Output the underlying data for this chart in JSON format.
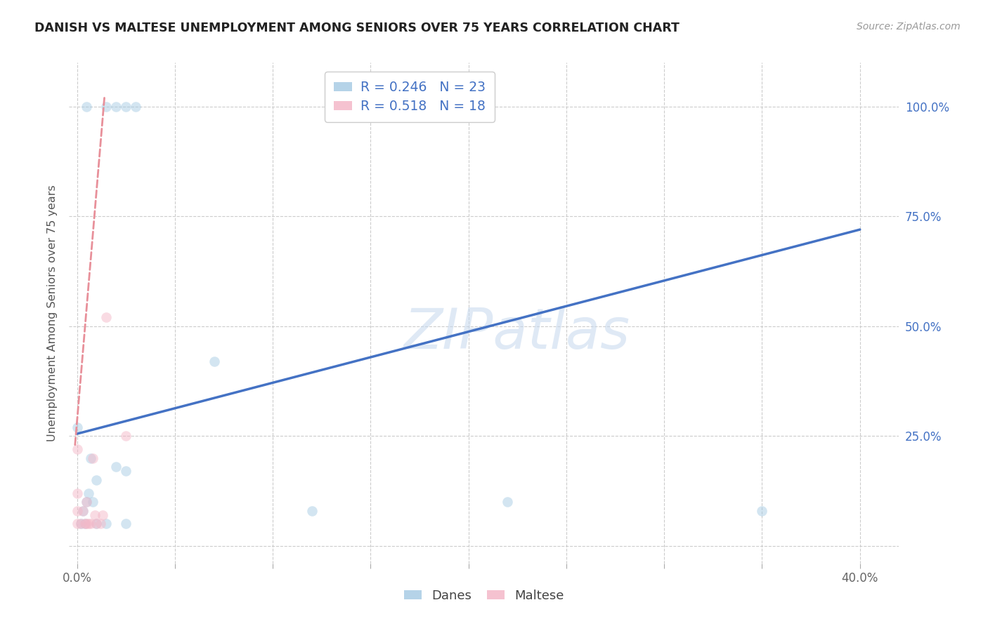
{
  "title": "DANISH VS MALTESE UNEMPLOYMENT AMONG SENIORS OVER 75 YEARS CORRELATION CHART",
  "source": "Source: ZipAtlas.com",
  "ylabel": "Unemployment Among Seniors over 75 years",
  "xlim": [
    -0.004,
    0.42
  ],
  "ylim": [
    -0.04,
    1.1
  ],
  "ytick_positions": [
    0.0,
    0.25,
    0.5,
    0.75,
    1.0
  ],
  "ytick_labels": [
    "",
    "25.0%",
    "50.0%",
    "75.0%",
    "100.0%"
  ],
  "xtick_positions": [
    0.0,
    0.05,
    0.1,
    0.15,
    0.2,
    0.25,
    0.3,
    0.35,
    0.4
  ],
  "xtick_labels": [
    "0.0%",
    "",
    "",
    "",
    "",
    "",
    "",
    "",
    "40.0%"
  ],
  "watermark": "ZIPatlas",
  "legend_blue_R": "0.246",
  "legend_blue_N": "23",
  "legend_pink_R": "0.518",
  "legend_pink_N": "18",
  "bg_color": "#ffffff",
  "grid_color": "#cccccc",
  "blue_scatter_color": "#a8cce4",
  "pink_scatter_color": "#f4b8c8",
  "blue_line_color": "#4472c4",
  "pink_line_color": "#e8909a",
  "axis_label_color": "#4472c4",
  "title_color": "#222222",
  "danes_x": [
    0.005,
    0.015,
    0.02,
    0.025,
    0.03,
    0.0,
    0.002,
    0.003,
    0.004,
    0.005,
    0.006,
    0.007,
    0.008,
    0.01,
    0.01,
    0.015,
    0.02,
    0.025,
    0.025,
    0.07,
    0.12,
    0.22,
    0.35
  ],
  "danes_y": [
    1.0,
    1.0,
    1.0,
    1.0,
    1.0,
    0.27,
    0.05,
    0.08,
    0.05,
    0.1,
    0.12,
    0.2,
    0.1,
    0.15,
    0.05,
    0.05,
    0.18,
    0.17,
    0.05,
    0.42,
    0.08,
    0.1,
    0.08
  ],
  "maltese_x": [
    0.0,
    0.0,
    0.0,
    0.0,
    0.002,
    0.003,
    0.004,
    0.005,
    0.005,
    0.006,
    0.007,
    0.008,
    0.009,
    0.01,
    0.012,
    0.013,
    0.015,
    0.025
  ],
  "maltese_y": [
    0.05,
    0.08,
    0.12,
    0.22,
    0.05,
    0.08,
    0.05,
    0.05,
    0.1,
    0.05,
    0.05,
    0.2,
    0.07,
    0.05,
    0.05,
    0.07,
    0.52,
    0.25
  ],
  "blue_trend_x": [
    0.0,
    0.4
  ],
  "blue_trend_y": [
    0.255,
    0.72
  ],
  "pink_trend_x": [
    -0.001,
    0.014
  ],
  "pink_trend_y": [
    0.23,
    1.02
  ],
  "marker_size": 110,
  "marker_alpha": 0.5
}
